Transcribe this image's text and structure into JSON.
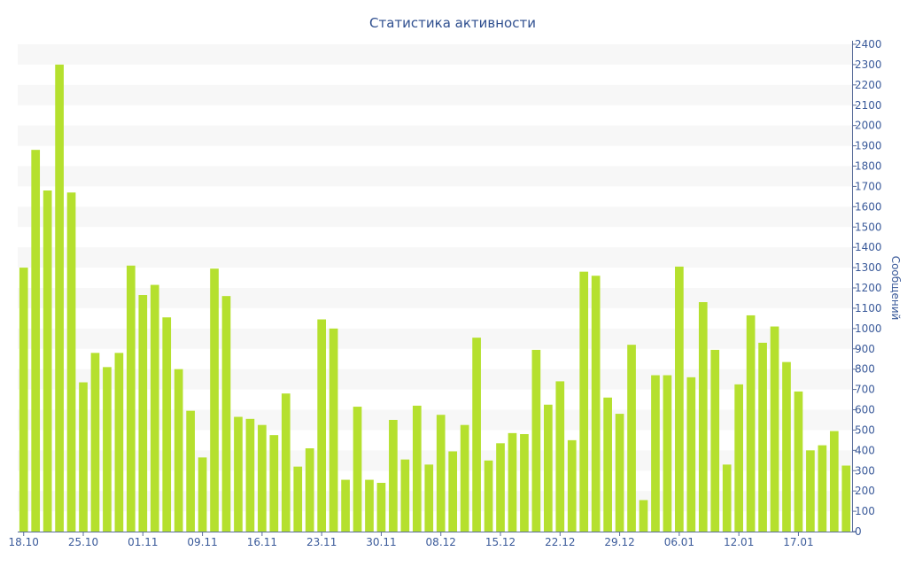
{
  "chart_data": {
    "type": "bar",
    "title": "Статистика активности",
    "ylabel": "Сообщений",
    "xlabel": "",
    "ylim": [
      0,
      2400
    ],
    "y_ticks": [
      0,
      100,
      200,
      300,
      400,
      500,
      600,
      700,
      800,
      900,
      1000,
      1100,
      1200,
      1300,
      1400,
      1500,
      1600,
      1700,
      1800,
      1900,
      2000,
      2100,
      2200,
      2300,
      2400
    ],
    "y_axis_position": "right",
    "grid": "alternating horizontal bands",
    "bar_color": "#b5e02e",
    "x_tick_labels": [
      "18.10",
      "25.10",
      "01.11",
      "09.11",
      "16.11",
      "23.11",
      "30.11",
      "08.12",
      "15.12",
      "22.12",
      "29.12",
      "06.01",
      "12.01",
      "17.01"
    ],
    "x_tick_bar_index": [
      0,
      5,
      10,
      15,
      20,
      25,
      30,
      35,
      40,
      45,
      50,
      55,
      60,
      65
    ],
    "values": [
      1300,
      1880,
      1680,
      2300,
      1670,
      735,
      880,
      810,
      880,
      1310,
      1165,
      1215,
      1055,
      800,
      595,
      365,
      1295,
      1160,
      565,
      555,
      525,
      475,
      680,
      320,
      410,
      1045,
      1000,
      255,
      615,
      255,
      240,
      550,
      355,
      620,
      330,
      575,
      395,
      525,
      955,
      350,
      435,
      485,
      480,
      895,
      625,
      740,
      450,
      1280,
      1260,
      660,
      580,
      920,
      155,
      770,
      770,
      1305,
      760,
      1130,
      895,
      330,
      725,
      1065,
      930,
      1010,
      835,
      690,
      400,
      425,
      495,
      325
    ]
  }
}
